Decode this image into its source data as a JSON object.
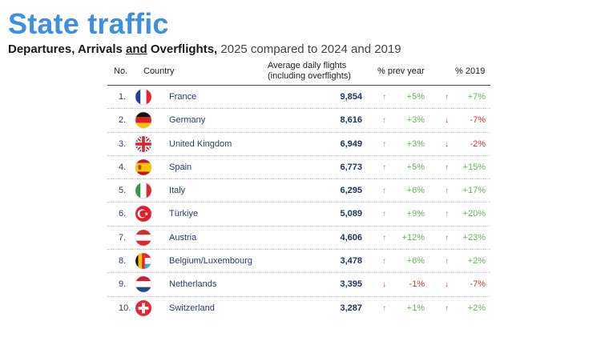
{
  "title": "State traffic",
  "subtitle": {
    "part1": "Departures, Arrivals ",
    "and": "and",
    "part2": " Overflights,",
    "part3": " 2025 compared to 2024 and 2019"
  },
  "headers": {
    "no": "No.",
    "country": "Country",
    "avg_line1": "Average daily flights",
    "avg_line2": "(including overflights)",
    "prev_year": "% prev year",
    "y2019": "% 2019"
  },
  "colors": {
    "title": "#3d8fe0",
    "up": "#5cba4e",
    "down": "#d9342b"
  },
  "chart_data": {
    "type": "table",
    "title": "State traffic",
    "columns": [
      "No.",
      "Country",
      "Average daily flights (including overflights)",
      "% prev year",
      "% 2019"
    ],
    "rows": [
      {
        "no": "1.",
        "country": "France",
        "flag": "france-flag-icon",
        "value": "9,854",
        "prev": "+5%",
        "prev_dir": "up",
        "y2019": "+7%",
        "y2019_dir": "up"
      },
      {
        "no": "2.",
        "country": "Germany",
        "flag": "germany-flag-icon",
        "value": "8,616",
        "prev": "+3%",
        "prev_dir": "up",
        "y2019": "-7%",
        "y2019_dir": "down"
      },
      {
        "no": "3.",
        "country": "United Kingdom",
        "flag": "uk-flag-icon",
        "value": "6,949",
        "prev": "+3%",
        "prev_dir": "up",
        "y2019": "-2%",
        "y2019_dir": "down"
      },
      {
        "no": "4.",
        "country": "Spain",
        "flag": "spain-flag-icon",
        "value": "6,773",
        "prev": "+5%",
        "prev_dir": "up",
        "y2019": "+15%",
        "y2019_dir": "up"
      },
      {
        "no": "5.",
        "country": "Italy",
        "flag": "italy-flag-icon",
        "value": "6,295",
        "prev": "+6%",
        "prev_dir": "up",
        "y2019": "+17%",
        "y2019_dir": "up"
      },
      {
        "no": "6.",
        "country": "Türkiye",
        "flag": "turkiye-flag-icon",
        "value": "5,089",
        "prev": "+9%",
        "prev_dir": "up",
        "y2019": "+20%",
        "y2019_dir": "up"
      },
      {
        "no": "7.",
        "country": "Austria",
        "flag": "austria-flag-icon",
        "value": "4,606",
        "prev": "+12%",
        "prev_dir": "up",
        "y2019": "+23%",
        "y2019_dir": "up"
      },
      {
        "no": "8.",
        "country": "Belgium/Luxembourg",
        "flag": "belgium-luxembourg-flag-icon",
        "value": "3,478",
        "prev": "+6%",
        "prev_dir": "up",
        "y2019": "+2%",
        "y2019_dir": "up"
      },
      {
        "no": "9.",
        "country": "Netherlands",
        "flag": "netherlands-flag-icon",
        "value": "3,395",
        "prev": "-1%",
        "prev_dir": "down",
        "y2019": "-7%",
        "y2019_dir": "down"
      },
      {
        "no": "10.",
        "country": "Switzerland",
        "flag": "switzerland-flag-icon",
        "value": "3,287",
        "prev": "+1%",
        "prev_dir": "up",
        "y2019": "+2%",
        "y2019_dir": "up"
      }
    ]
  }
}
